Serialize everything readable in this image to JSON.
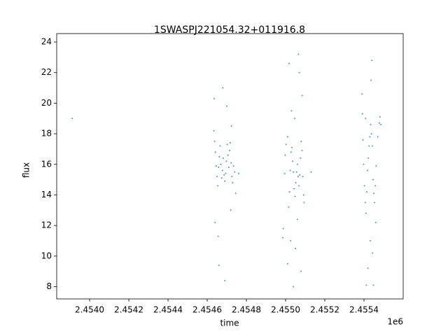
{
  "chart_data": {
    "type": "scatter",
    "title": "1SWASPJ221054.32+011916.8",
    "x_label": "time",
    "y_label": "flux",
    "x_offset_label": "1e6",
    "color": "#1f77b4",
    "xlim": [
      2453832,
      2455600
    ],
    "ylim": [
      7.2,
      24.55
    ],
    "xticks": [
      {
        "value": 2454000,
        "label": "2.4540"
      },
      {
        "value": 2454200,
        "label": "2.4542"
      },
      {
        "value": 2454400,
        "label": "2.4544"
      },
      {
        "value": 2454600,
        "label": "2.4546"
      },
      {
        "value": 2454800,
        "label": "2.4548"
      },
      {
        "value": 2455000,
        "label": "2.4550"
      },
      {
        "value": 2455200,
        "label": "2.4552"
      },
      {
        "value": 2455400,
        "label": "2.4554"
      }
    ],
    "yticks": [
      8,
      10,
      12,
      14,
      16,
      18,
      20,
      22,
      24
    ],
    "x": [
      2453911,
      2454634,
      2454638,
      2454642,
      2454646,
      2454650,
      2454654,
      2454658,
      2454662,
      2454666,
      2454670,
      2454674,
      2454678,
      2454682,
      2454686,
      2454690,
      2454694,
      2454698,
      2454702,
      2454706,
      2454710,
      2454714,
      2454718,
      2454722,
      2454726,
      2454730,
      2454734,
      2454740,
      2454760,
      2454636,
      2454640,
      2454660,
      2454700,
      2454720,
      2454724,
      2454745,
      2454680,
      2454690,
      2454656,
      2454985,
      2454988,
      2454995,
      2454998,
      2455002,
      2455010,
      2455016,
      2455020,
      2455024,
      2455028,
      2455032,
      2455036,
      2455040,
      2455044,
      2455048,
      2455052,
      2455056,
      2455060,
      2455064,
      2455068,
      2455072,
      2455076,
      2455080,
      2455084,
      2455088,
      2455092,
      2455094,
      2455130,
      2455018,
      2455030,
      2455040,
      2455050,
      2455066,
      2455070,
      2455078,
      2455085,
      2455026,
      2455060,
      2455010,
      2455046,
      2455390,
      2455392,
      2455395,
      2455398,
      2455402,
      2455406,
      2455410,
      2455414,
      2455418,
      2455422,
      2455426,
      2455430,
      2455434,
      2455438,
      2455442,
      2455446,
      2455450,
      2455454,
      2455458,
      2455462,
      2455470,
      2455478,
      2455482,
      2455486,
      2455420,
      2455436,
      2455440,
      2455444,
      2455448,
      2455432,
      2455408,
      2455460,
      2455412
    ],
    "values": [
      19.0,
      18.2,
      17.5,
      16.8,
      15.9,
      15.2,
      14.6,
      15.8,
      16.5,
      17.2,
      16.0,
      15.1,
      15.6,
      16.4,
      15.3,
      14.9,
      15.4,
      16.2,
      17.3,
      16.6,
      15.8,
      16.9,
      17.4,
      16.1,
      15.2,
      14.8,
      15.9,
      15.5,
      15.4,
      20.3,
      12.2,
      9.4,
      19.8,
      13.0,
      18.5,
      14.1,
      21.0,
      8.4,
      11.3,
      11.2,
      11.8,
      15.4,
      16.6,
      17.3,
      17.8,
      13.2,
      14.2,
      15.6,
      16.8,
      17.1,
      16.2,
      15.5,
      14.4,
      13.9,
      14.8,
      15.5,
      16.0,
      15.2,
      14.6,
      15.3,
      16.4,
      17.5,
      16.9,
      15.2,
      14.0,
      13.5,
      15.5,
      22.6,
      19.5,
      8.0,
      10.5,
      23.2,
      22.0,
      9.0,
      20.5,
      11.0,
      12.4,
      9.5,
      19.0,
      20.6,
      19.3,
      17.6,
      16.0,
      14.6,
      13.5,
      12.8,
      14.2,
      15.6,
      16.4,
      17.2,
      17.8,
      18.6,
      18.0,
      17.2,
      15.0,
      14.1,
      13.5,
      14.6,
      15.9,
      17.8,
      18.7,
      19.1,
      18.6,
      9.2,
      21.5,
      22.8,
      10.2,
      8.1,
      11.0,
      19.0,
      12.2,
      8.1
    ]
  }
}
